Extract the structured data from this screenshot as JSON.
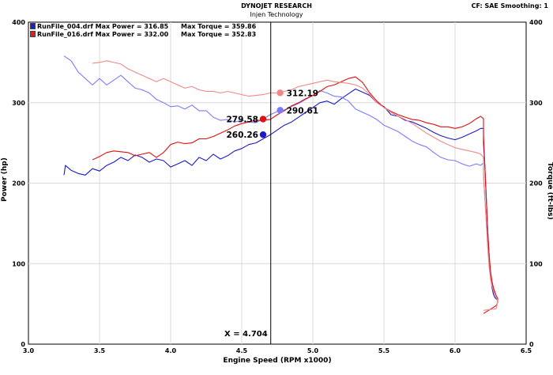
{
  "header": {
    "title": "DYNOJET RESEARCH",
    "subtitle": "Injen Technology",
    "settings": "CF: SAE  Smoothing: 1"
  },
  "legend": [
    {
      "file": "RunFile_004.drf",
      "max_power": "Max Power = 316.85",
      "max_torque": "Max Torque = 359.86",
      "color": "#2020c8"
    },
    {
      "file": "RunFile_016.drf",
      "max_power": "Max Power = 332.00",
      "max_torque": "Max Torque = 352.83",
      "color": "#e02020"
    }
  ],
  "cursor": {
    "label": "X = 4.704",
    "x": 4.704
  },
  "chart_data": {
    "type": "line",
    "title": "DYNOJET RESEARCH",
    "subtitle": "Injen Technology",
    "xlabel": "Engine Speed (RPM x1000)",
    "ylabel": "Power (hp)",
    "y2label": "Torque (ft-lbs)",
    "xlim": [
      3.0,
      6.5
    ],
    "ylim": [
      0,
      400
    ],
    "y2lim": [
      0,
      400
    ],
    "xticks": [
      3.0,
      3.5,
      4.0,
      4.5,
      5.0,
      5.5,
      6.0,
      6.5
    ],
    "xtick_labels": [
      "3.0",
      "3.5",
      "4.0",
      "4.5",
      "5.0",
      "5.5",
      "6.0",
      "6.5"
    ],
    "yticks": [
      0,
      100,
      200,
      300,
      400
    ],
    "ytick_labels": [
      "0",
      "100",
      "200",
      "300",
      "400"
    ],
    "y2ticks": [
      0,
      100,
      200,
      300,
      400
    ],
    "y2tick_labels": [
      "0",
      "100",
      "200",
      "300",
      "400"
    ],
    "grid": true,
    "legend_position": "top-left",
    "series": [
      {
        "name": "RunFile_004.drf",
        "measure": "Power",
        "color": "#1a1ac8",
        "x": [
          3.25,
          3.26,
          3.3,
          3.35,
          3.4,
          3.45,
          3.5,
          3.55,
          3.6,
          3.65,
          3.7,
          3.75,
          3.8,
          3.85,
          3.9,
          3.95,
          4.0,
          4.05,
          4.1,
          4.15,
          4.2,
          4.25,
          4.3,
          4.35,
          4.4,
          4.45,
          4.5,
          4.55,
          4.6,
          4.65,
          4.7,
          4.75,
          4.8,
          4.85,
          4.9,
          4.95,
          5.0,
          5.05,
          5.1,
          5.15,
          5.2,
          5.25,
          5.3,
          5.35,
          5.4,
          5.45,
          5.5,
          5.55,
          5.6,
          5.65,
          5.7,
          5.75,
          5.8,
          5.85,
          5.9,
          5.95,
          6.0,
          6.05,
          6.1,
          6.15,
          6.18,
          6.2,
          6.2,
          6.21,
          6.22,
          6.23,
          6.24,
          6.25,
          6.26,
          6.27,
          6.28,
          6.29,
          6.3,
          6.3
        ],
        "y": [
          210,
          222,
          216,
          212,
          210,
          218,
          215,
          222,
          226,
          232,
          228,
          235,
          232,
          226,
          230,
          228,
          220,
          224,
          228,
          222,
          232,
          228,
          236,
          230,
          234,
          240,
          243,
          248,
          250,
          255,
          260,
          266,
          272,
          276,
          282,
          288,
          294,
          300,
          302,
          298,
          305,
          311,
          317,
          313,
          309,
          300,
          295,
          285,
          283,
          278,
          276,
          272,
          268,
          263,
          259,
          256,
          254,
          257,
          261,
          265,
          268,
          268,
          250,
          220,
          180,
          140,
          110,
          85,
          70,
          62,
          58,
          56,
          55,
          53
        ]
      },
      {
        "name": "RunFile_004.drf",
        "measure": "Torque",
        "color": "#7b7bff",
        "x": [
          3.25,
          3.3,
          3.35,
          3.4,
          3.45,
          3.5,
          3.55,
          3.6,
          3.65,
          3.7,
          3.75,
          3.8,
          3.85,
          3.9,
          3.95,
          4.0,
          4.05,
          4.1,
          4.15,
          4.2,
          4.25,
          4.3,
          4.35,
          4.4,
          4.45,
          4.5,
          4.55,
          4.6,
          4.65,
          4.7,
          4.75,
          4.8,
          4.85,
          4.9,
          4.95,
          5.0,
          5.05,
          5.1,
          5.15,
          5.2,
          5.25,
          5.3,
          5.35,
          5.4,
          5.45,
          5.5,
          5.55,
          5.6,
          5.65,
          5.7,
          5.75,
          5.8,
          5.85,
          5.9,
          5.95,
          6.0,
          6.05,
          6.1,
          6.15,
          6.18,
          6.2,
          6.2,
          6.21,
          6.22,
          6.23,
          6.24,
          6.25,
          6.26,
          6.27,
          6.28,
          6.29,
          6.3
        ],
        "y": [
          358,
          352,
          338,
          330,
          322,
          330,
          322,
          328,
          334,
          326,
          318,
          316,
          312,
          304,
          300,
          295,
          296,
          292,
          297,
          290,
          290,
          282,
          278,
          279,
          276,
          278,
          276,
          275,
          280,
          285,
          289,
          291,
          295,
          299,
          304,
          309,
          315,
          312,
          308,
          307,
          302,
          292,
          288,
          284,
          279,
          272,
          268,
          264,
          258,
          252,
          248,
          245,
          238,
          232,
          229,
          228,
          224,
          221,
          224,
          222,
          225,
          210,
          180,
          150,
          120,
          100,
          85,
          75,
          68,
          62,
          58,
          52
        ]
      },
      {
        "name": "RunFile_016.drf",
        "measure": "Power",
        "color": "#e01010",
        "x": [
          3.45,
          3.5,
          3.55,
          3.6,
          3.65,
          3.7,
          3.75,
          3.8,
          3.85,
          3.9,
          3.95,
          4.0,
          4.05,
          4.1,
          4.15,
          4.2,
          4.25,
          4.3,
          4.35,
          4.4,
          4.45,
          4.5,
          4.55,
          4.6,
          4.65,
          4.7,
          4.75,
          4.8,
          4.85,
          4.9,
          4.95,
          5.0,
          5.05,
          5.1,
          5.15,
          5.2,
          5.25,
          5.3,
          5.35,
          5.4,
          5.45,
          5.5,
          5.55,
          5.6,
          5.65,
          5.7,
          5.75,
          5.8,
          5.85,
          5.9,
          5.95,
          6.0,
          6.05,
          6.1,
          6.15,
          6.18,
          6.2,
          6.2,
          6.21,
          6.22,
          6.23,
          6.24,
          6.25,
          6.26,
          6.27,
          6.28,
          6.29,
          6.3,
          6.3,
          6.29,
          6.2
        ],
        "y": [
          229,
          233,
          238,
          240,
          239,
          238,
          234,
          236,
          238,
          232,
          238,
          248,
          251,
          249,
          250,
          255,
          255,
          258,
          262,
          266,
          271,
          274,
          276,
          278,
          278,
          279,
          285,
          290,
          296,
          300,
          305,
          309,
          314,
          320,
          322,
          326,
          330,
          332,
          325,
          312,
          302,
          294,
          289,
          285,
          282,
          279,
          278,
          275,
          273,
          270,
          270,
          268,
          270,
          274,
          280,
          283,
          280,
          260,
          220,
          180,
          140,
          110,
          90,
          78,
          70,
          65,
          60,
          57,
          52,
          48,
          38
        ]
      },
      {
        "name": "RunFile_016.drf",
        "measure": "Torque",
        "color": "#f08888",
        "x": [
          3.45,
          3.5,
          3.55,
          3.6,
          3.65,
          3.7,
          3.75,
          3.8,
          3.85,
          3.9,
          3.95,
          4.0,
          4.05,
          4.1,
          4.15,
          4.2,
          4.25,
          4.3,
          4.35,
          4.4,
          4.45,
          4.5,
          4.55,
          4.6,
          4.65,
          4.7,
          4.75,
          4.8,
          4.85,
          4.9,
          4.95,
          5.0,
          5.05,
          5.1,
          5.15,
          5.2,
          5.25,
          5.3,
          5.35,
          5.4,
          5.45,
          5.5,
          5.55,
          5.6,
          5.65,
          5.7,
          5.75,
          5.8,
          5.85,
          5.9,
          5.95,
          6.0,
          6.05,
          6.1,
          6.15,
          6.18,
          6.2,
          6.2,
          6.21,
          6.22,
          6.23,
          6.24,
          6.25,
          6.26,
          6.27,
          6.28,
          6.29,
          6.3,
          6.29,
          6.2
        ],
        "y": [
          349,
          350,
          352,
          350,
          348,
          342,
          338,
          334,
          330,
          326,
          330,
          326,
          322,
          318,
          320,
          316,
          314,
          314,
          312,
          314,
          312,
          310,
          308,
          309,
          310,
          312,
          312,
          314,
          316,
          320,
          322,
          324,
          326,
          328,
          326,
          325,
          324,
          322,
          318,
          310,
          300,
          294,
          288,
          283,
          279,
          274,
          268,
          262,
          257,
          252,
          248,
          244,
          242,
          240,
          238,
          236,
          232,
          210,
          180,
          150,
          120,
          95,
          80,
          72,
          66,
          62,
          58,
          54,
          44,
          42
        ]
      }
    ],
    "annotations": [
      {
        "text": "312.19",
        "x": 4.77,
        "y": 312.19,
        "color": "#f08888"
      },
      {
        "text": "290.61",
        "x": 4.77,
        "y": 290.61,
        "color": "#7b7bff"
      },
      {
        "text": "279.58",
        "x": 4.65,
        "y": 279.58,
        "color": "#e01010"
      },
      {
        "text": "260.26",
        "x": 4.65,
        "y": 260.26,
        "color": "#1a1ac8"
      }
    ]
  }
}
